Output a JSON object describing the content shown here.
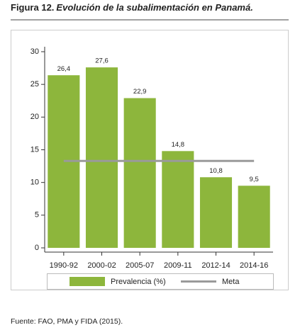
{
  "chart_data": {
    "type": "bar",
    "figure_label": "Figura 12.",
    "title": "Evolución de la subalimentación en Panamá.",
    "categories": [
      "1990-92",
      "2000-02",
      "2005-07",
      "2009-11",
      "2012-14",
      "2014-16"
    ],
    "series": [
      {
        "name": "Prevalencia (%)",
        "color": "#8db63c",
        "type": "bar",
        "values": [
          26.4,
          27.6,
          22.9,
          14.8,
          10.8,
          9.5
        ],
        "value_labels": [
          "26,4",
          "27,6",
          "22,9",
          "14,8",
          "10,8",
          "9,5"
        ]
      },
      {
        "name": "Meta",
        "color": "#9a9a9a",
        "type": "line",
        "values": [
          13.3,
          13.3,
          13.3,
          13.3,
          13.3,
          13.3
        ]
      }
    ],
    "ylim": [
      0,
      30
    ],
    "yticks": [
      0,
      5,
      10,
      15,
      20,
      25,
      30
    ],
    "source": "Fuente: FAO, PMA y FIDA (2015)."
  }
}
